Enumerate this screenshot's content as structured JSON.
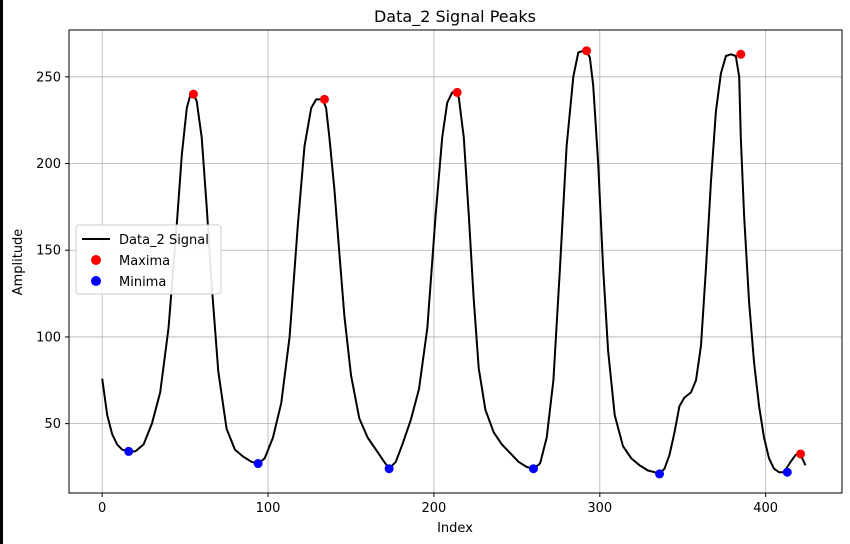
{
  "chart_data": {
    "type": "line",
    "title": "Data_2 Signal Peaks",
    "xlabel": "Index",
    "ylabel": "Amplitude",
    "xlim": [
      -20,
      446
    ],
    "ylim": [
      10,
      277
    ],
    "xticks": [
      0,
      100,
      200,
      300,
      400
    ],
    "yticks": [
      50,
      100,
      150,
      200,
      250
    ],
    "grid": true,
    "legend_position": "center-left",
    "series": [
      {
        "name": "Data_2 Signal",
        "kind": "line",
        "color": "#000000",
        "x": [
          0,
          3,
          6,
          9,
          12,
          16,
          20,
          25,
          30,
          35,
          40,
          45,
          48,
          51,
          53,
          55,
          57,
          60,
          63,
          66,
          70,
          75,
          80,
          85,
          90,
          94,
          98,
          103,
          108,
          113,
          118,
          122,
          126,
          129,
          131,
          133,
          135,
          137,
          140,
          143,
          146,
          150,
          155,
          160,
          165,
          170,
          173,
          177,
          181,
          186,
          191,
          196,
          201,
          205,
          208,
          211,
          213,
          215,
          218,
          221,
          224,
          227,
          231,
          236,
          241,
          246,
          251,
          256,
          260,
          264,
          268,
          272,
          276,
          280,
          284,
          287,
          290,
          292,
          294,
          296,
          299,
          302,
          305,
          309,
          314,
          319,
          324,
          329,
          333,
          336,
          339,
          342,
          345,
          348,
          351,
          355,
          358,
          361,
          364,
          367,
          370,
          373,
          376,
          379,
          382,
          384,
          385,
          387,
          390,
          393,
          396,
          399,
          402,
          405,
          408,
          411,
          413,
          415,
          418,
          420,
          422,
          424
        ],
        "y": [
          76,
          55,
          44,
          38,
          35,
          34,
          34,
          38,
          50,
          68,
          105,
          165,
          205,
          232,
          239,
          240,
          236,
          215,
          175,
          130,
          80,
          47,
          35,
          31,
          28,
          27,
          30,
          42,
          62,
          100,
          165,
          210,
          232,
          237,
          237,
          237,
          232,
          215,
          185,
          148,
          112,
          78,
          53,
          42,
          35,
          28,
          24,
          28,
          38,
          52,
          70,
          105,
          170,
          215,
          235,
          241,
          241,
          238,
          215,
          170,
          122,
          82,
          58,
          45,
          38,
          33,
          28,
          25,
          24,
          27,
          42,
          75,
          140,
          210,
          250,
          264,
          265,
          265,
          261,
          245,
          200,
          140,
          92,
          55,
          37,
          30,
          26,
          23,
          22,
          21,
          24,
          32,
          45,
          60,
          65,
          68,
          75,
          95,
          140,
          190,
          230,
          252,
          262,
          263,
          262,
          250,
          215,
          170,
          120,
          85,
          60,
          42,
          30,
          24,
          22,
          22,
          25,
          28,
          32,
          32,
          30,
          26
        ]
      },
      {
        "name": "Maxima",
        "kind": "marker",
        "color": "#ff0000",
        "x": [
          55,
          134,
          214,
          292,
          385,
          421
        ],
        "y": [
          240,
          237,
          241,
          265,
          263,
          32.5
        ]
      },
      {
        "name": "Minima",
        "kind": "marker",
        "color": "#0000ff",
        "x": [
          16,
          94,
          173,
          260,
          336,
          413
        ],
        "y": [
          34,
          27,
          24,
          24,
          21,
          22
        ]
      }
    ]
  }
}
